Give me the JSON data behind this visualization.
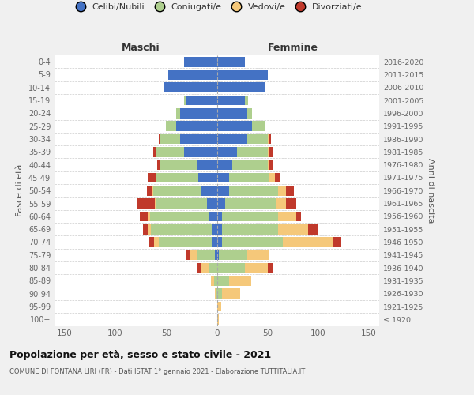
{
  "age_groups": [
    "100+",
    "95-99",
    "90-94",
    "85-89",
    "80-84",
    "75-79",
    "70-74",
    "65-69",
    "60-64",
    "55-59",
    "50-54",
    "45-49",
    "40-44",
    "35-39",
    "30-34",
    "25-29",
    "20-24",
    "15-19",
    "10-14",
    "5-9",
    "0-4"
  ],
  "birth_years": [
    "≤ 1920",
    "1921-1925",
    "1926-1930",
    "1931-1935",
    "1936-1940",
    "1941-1945",
    "1946-1950",
    "1951-1955",
    "1956-1960",
    "1961-1965",
    "1966-1970",
    "1971-1975",
    "1976-1980",
    "1981-1985",
    "1986-1990",
    "1991-1995",
    "1996-2000",
    "2001-2005",
    "2006-2010",
    "2011-2015",
    "2016-2020"
  ],
  "male": {
    "celibi": [
      0,
      0,
      0,
      0,
      0,
      2,
      5,
      5,
      8,
      10,
      15,
      18,
      20,
      32,
      36,
      40,
      36,
      30,
      52,
      48,
      32
    ],
    "coniugati": [
      0,
      0,
      1,
      3,
      8,
      18,
      52,
      60,
      58,
      50,
      48,
      42,
      36,
      28,
      20,
      10,
      4,
      2,
      0,
      0,
      0
    ],
    "vedovi": [
      0,
      0,
      1,
      3,
      7,
      6,
      5,
      3,
      2,
      1,
      1,
      0,
      0,
      0,
      0,
      0,
      0,
      0,
      0,
      0,
      0
    ],
    "divorziati": [
      0,
      0,
      0,
      0,
      5,
      5,
      5,
      5,
      8,
      18,
      5,
      8,
      3,
      3,
      1,
      0,
      0,
      0,
      0,
      0,
      0
    ]
  },
  "female": {
    "nubili": [
      0,
      0,
      0,
      0,
      0,
      2,
      5,
      5,
      5,
      8,
      12,
      12,
      15,
      20,
      30,
      35,
      30,
      28,
      48,
      50,
      28
    ],
    "coniugate": [
      0,
      0,
      5,
      12,
      28,
      28,
      60,
      55,
      55,
      50,
      48,
      40,
      35,
      30,
      20,
      12,
      5,
      3,
      0,
      0,
      0
    ],
    "vedove": [
      2,
      4,
      18,
      22,
      22,
      22,
      50,
      30,
      18,
      10,
      8,
      5,
      2,
      2,
      1,
      0,
      0,
      0,
      0,
      0,
      0
    ],
    "divorziate": [
      0,
      0,
      0,
      0,
      5,
      0,
      8,
      10,
      5,
      10,
      8,
      5,
      3,
      3,
      2,
      0,
      0,
      0,
      0,
      0,
      0
    ]
  },
  "colors": {
    "celibi": "#4472C4",
    "coniugati": "#AECF8E",
    "vedovi": "#F5C87A",
    "divorziati": "#C0392B"
  },
  "title": "Popolazione per età, sesso e stato civile - 2021",
  "subtitle": "COMUNE DI FONTANA LIRI (FR) - Dati ISTAT 1° gennaio 2021 - Elaborazione TUTTITALIA.IT",
  "ylabel": "Fasce di età",
  "ylabel_right": "Anni di nascita",
  "xlabel_left": "Maschi",
  "xlabel_right": "Femmine",
  "legend_labels": [
    "Celibi/Nubili",
    "Coniugati/e",
    "Vedovi/e",
    "Divorziati/e"
  ],
  "xlim": 160,
  "bg_color": "#f0f0f0",
  "plot_bg": "#ffffff"
}
